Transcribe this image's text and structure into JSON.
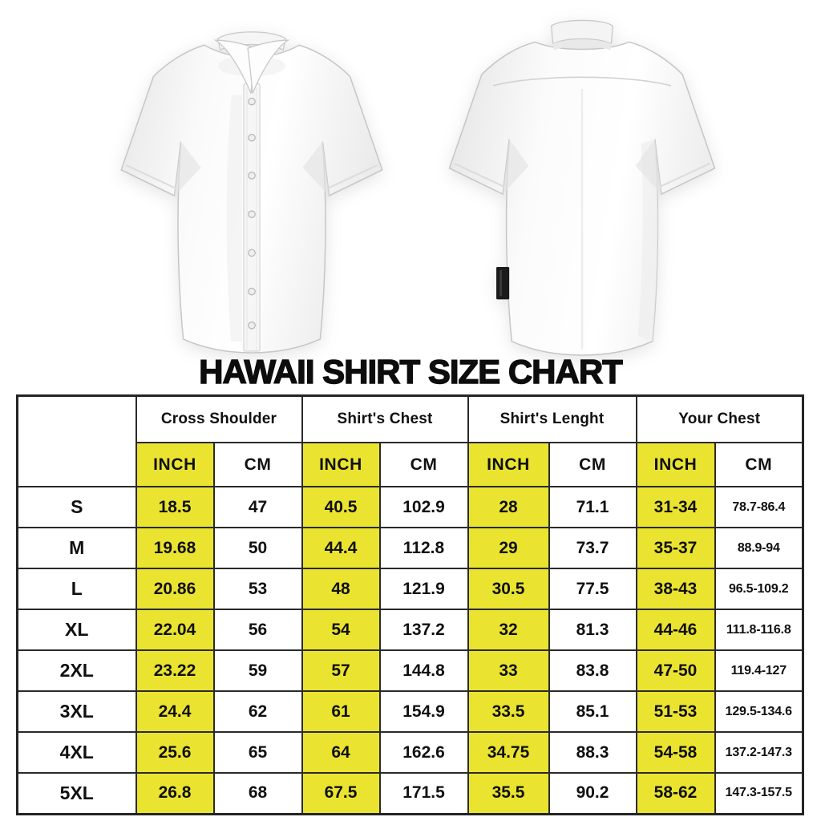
{
  "colors": {
    "highlight_yellow": "#eae431",
    "table_border": "#2a2a2a",
    "title_text": "#0d0d0d",
    "background": "#ffffff"
  },
  "chart_data": {
    "type": "table",
    "title": "HAWAII SHIRT SIZE CHART",
    "corner_label": "",
    "column_groups": [
      {
        "label": "Cross Shoulder"
      },
      {
        "label": "Shirt's Chest"
      },
      {
        "label": "Shirt's Lenght"
      },
      {
        "label": "Your Chest"
      }
    ],
    "unit_headers": [
      "INCH",
      "CM",
      "INCH",
      "CM",
      "INCH",
      "CM",
      "INCH",
      "CM"
    ],
    "rows": [
      {
        "size": "S",
        "values": [
          "18.5",
          "47",
          "40.5",
          "102.9",
          "28",
          "71.1",
          "31-34",
          "78.7-86.4"
        ]
      },
      {
        "size": "M",
        "values": [
          "19.68",
          "50",
          "44.4",
          "112.8",
          "29",
          "73.7",
          "35-37",
          "88.9-94"
        ]
      },
      {
        "size": "L",
        "values": [
          "20.86",
          "53",
          "48",
          "121.9",
          "30.5",
          "77.5",
          "38-43",
          "96.5-109.2"
        ]
      },
      {
        "size": "XL",
        "values": [
          "22.04",
          "56",
          "54",
          "137.2",
          "32",
          "81.3",
          "44-46",
          "111.8-116.8"
        ]
      },
      {
        "size": "2XL",
        "values": [
          "23.22",
          "59",
          "57",
          "144.8",
          "33",
          "83.8",
          "47-50",
          "119.4-127"
        ]
      },
      {
        "size": "3XL",
        "values": [
          "24.4",
          "62",
          "61",
          "154.9",
          "33.5",
          "85.1",
          "51-53",
          "129.5-134.6"
        ]
      },
      {
        "size": "4XL",
        "values": [
          "25.6",
          "65",
          "64",
          "162.6",
          "34.75",
          "88.3",
          "54-58",
          "137.2-147.3"
        ]
      },
      {
        "size": "5XL",
        "values": [
          "26.8",
          "68",
          "67.5",
          "171.5",
          "35.5",
          "90.2",
          "58-62",
          "147.3-157.5"
        ]
      }
    ]
  }
}
